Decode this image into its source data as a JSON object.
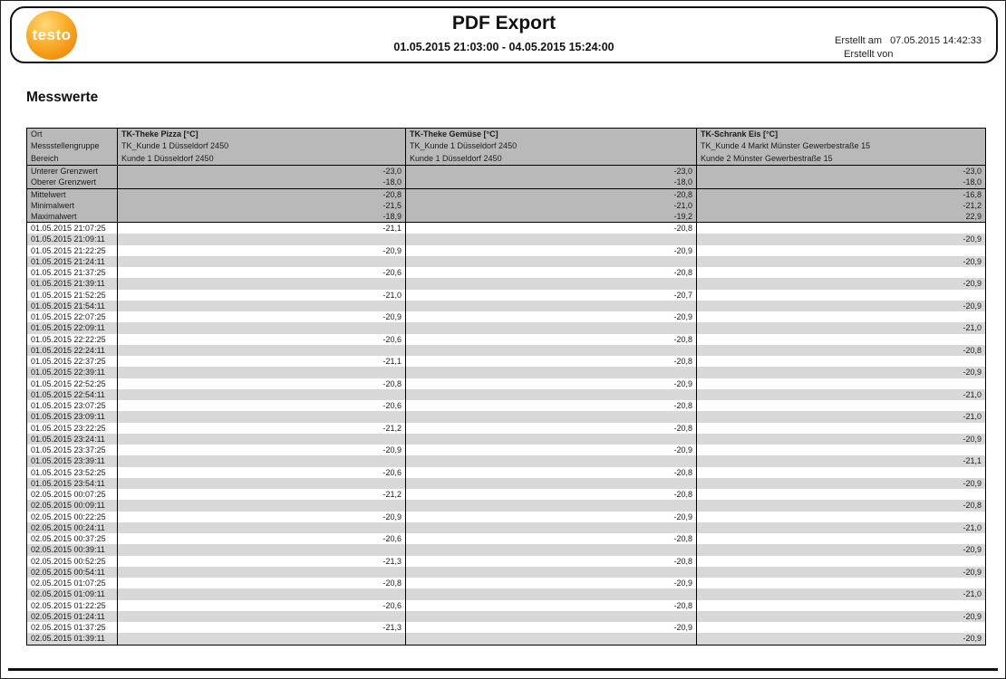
{
  "header": {
    "logo_text": "testo",
    "title": "PDF Export",
    "date_range": "01.05.2015 21:03:00 - 04.05.2015 15:24:00",
    "created_at_label": "Erstellt am",
    "created_at_value": "07.05.2015 14:42:33",
    "created_by_label": "Erstellt von"
  },
  "section_title": "Messwerte",
  "colors": {
    "brand_orange": "#f29414",
    "table_header_gray": "#b9b9b9",
    "row_alt_gray": "#d8d8d8"
  },
  "table": {
    "meta_rows": [
      {
        "label": "Ort",
        "values": [
          "TK-Theke Pizza [°C]",
          "TK-Theke Gemüse [°C]",
          "TK-Schrank Eis [°C]"
        ]
      },
      {
        "label": "Messstellengruppe",
        "values": [
          "TK_Kunde 1 Düsseldorf 2450",
          "TK_Kunde 1 Düsseldorf 2450",
          "TK_Kunde 4 Markt Münster Gewerbestraße 15"
        ]
      },
      {
        "label": "Bereich",
        "values": [
          "Kunde 1 Düsseldorf 2450",
          "Kunde 1 Düsseldorf 2450",
          "Kunde 2 Münster Gewerbestraße 15"
        ]
      }
    ],
    "limit_rows": [
      {
        "label": "Unterer Grenzwert",
        "values": [
          "-23,0",
          "-23,0",
          "-23,0"
        ]
      },
      {
        "label": "Oberer Grenzwert",
        "values": [
          "-18,0",
          "-18,0",
          "-18,0"
        ]
      }
    ],
    "stat_rows": [
      {
        "label": "Mittelwert",
        "values": [
          "-20,8",
          "-20,8",
          "-16,8"
        ]
      },
      {
        "label": "Minimalwert",
        "values": [
          "-21,5",
          "-21,0",
          "-21,2"
        ]
      },
      {
        "label": "Maximalwert",
        "values": [
          "-18,9",
          "-19,2",
          "22,9"
        ]
      }
    ],
    "data_rows": [
      {
        "time": "01.05.2015 21:07:25",
        "values": [
          "-21,1",
          "-20,8",
          ""
        ]
      },
      {
        "time": "01.05.2015 21:09:11",
        "values": [
          "",
          "",
          "-20,9"
        ]
      },
      {
        "time": "01.05.2015 21:22:25",
        "values": [
          "-20,9",
          "-20,9",
          ""
        ]
      },
      {
        "time": "01.05.2015 21:24:11",
        "values": [
          "",
          "",
          "-20,9"
        ]
      },
      {
        "time": "01.05.2015 21:37:25",
        "values": [
          "-20,6",
          "-20,8",
          ""
        ]
      },
      {
        "time": "01.05.2015 21:39:11",
        "values": [
          "",
          "",
          "-20,9"
        ]
      },
      {
        "time": "01.05.2015 21:52:25",
        "values": [
          "-21,0",
          "-20,7",
          ""
        ]
      },
      {
        "time": "01.05.2015 21:54:11",
        "values": [
          "",
          "",
          "-20,9"
        ]
      },
      {
        "time": "01.05.2015 22:07:25",
        "values": [
          "-20,9",
          "-20,9",
          ""
        ]
      },
      {
        "time": "01.05.2015 22:09:11",
        "values": [
          "",
          "",
          "-21,0"
        ]
      },
      {
        "time": "01.05.2015 22:22:25",
        "values": [
          "-20,6",
          "-20,8",
          ""
        ]
      },
      {
        "time": "01.05.2015 22:24:11",
        "values": [
          "",
          "",
          "-20,8"
        ]
      },
      {
        "time": "01.05.2015 22:37:25",
        "values": [
          "-21,1",
          "-20,8",
          ""
        ]
      },
      {
        "time": "01.05.2015 22:39:11",
        "values": [
          "",
          "",
          "-20,9"
        ]
      },
      {
        "time": "01.05.2015 22:52:25",
        "values": [
          "-20,8",
          "-20,9",
          ""
        ]
      },
      {
        "time": "01.05.2015 22:54:11",
        "values": [
          "",
          "",
          "-21,0"
        ]
      },
      {
        "time": "01.05.2015 23:07:25",
        "values": [
          "-20,6",
          "-20,8",
          ""
        ]
      },
      {
        "time": "01.05.2015 23:09:11",
        "values": [
          "",
          "",
          "-21,0"
        ]
      },
      {
        "time": "01.05.2015 23:22:25",
        "values": [
          "-21,2",
          "-20,8",
          ""
        ]
      },
      {
        "time": "01.05.2015 23:24:11",
        "values": [
          "",
          "",
          "-20,9"
        ]
      },
      {
        "time": "01.05.2015 23:37:25",
        "values": [
          "-20,9",
          "-20,9",
          ""
        ]
      },
      {
        "time": "01.05.2015 23:39:11",
        "values": [
          "",
          "",
          "-21,1"
        ]
      },
      {
        "time": "01.05.2015 23:52:25",
        "values": [
          "-20,6",
          "-20,8",
          ""
        ]
      },
      {
        "time": "01.05.2015 23:54:11",
        "values": [
          "",
          "",
          "-20,9"
        ]
      },
      {
        "time": "02.05.2015 00:07:25",
        "values": [
          "-21,2",
          "-20,8",
          ""
        ]
      },
      {
        "time": "02.05.2015 00:09:11",
        "values": [
          "",
          "",
          "-20,8"
        ]
      },
      {
        "time": "02.05.2015 00:22:25",
        "values": [
          "-20,9",
          "-20,9",
          ""
        ]
      },
      {
        "time": "02.05.2015 00:24:11",
        "values": [
          "",
          "",
          "-21,0"
        ]
      },
      {
        "time": "02.05.2015 00:37:25",
        "values": [
          "-20,6",
          "-20,8",
          ""
        ]
      },
      {
        "time": "02.05.2015 00:39:11",
        "values": [
          "",
          "",
          "-20,9"
        ]
      },
      {
        "time": "02.05.2015 00:52:25",
        "values": [
          "-21,3",
          "-20,8",
          ""
        ]
      },
      {
        "time": "02.05.2015 00:54:11",
        "values": [
          "",
          "",
          "-20,9"
        ]
      },
      {
        "time": "02.05.2015 01:07:25",
        "values": [
          "-20,8",
          "-20,9",
          ""
        ]
      },
      {
        "time": "02.05.2015 01:09:11",
        "values": [
          "",
          "",
          "-21,0"
        ]
      },
      {
        "time": "02.05.2015 01:22:25",
        "values": [
          "-20,6",
          "-20,8",
          ""
        ]
      },
      {
        "time": "02.05.2015 01:24:11",
        "values": [
          "",
          "",
          "-20,9"
        ]
      },
      {
        "time": "02.05.2015 01:37:25",
        "values": [
          "-21,3",
          "-20,9",
          ""
        ]
      },
      {
        "time": "02.05.2015 01:39:11",
        "values": [
          "",
          "",
          "-20,9"
        ]
      }
    ]
  }
}
